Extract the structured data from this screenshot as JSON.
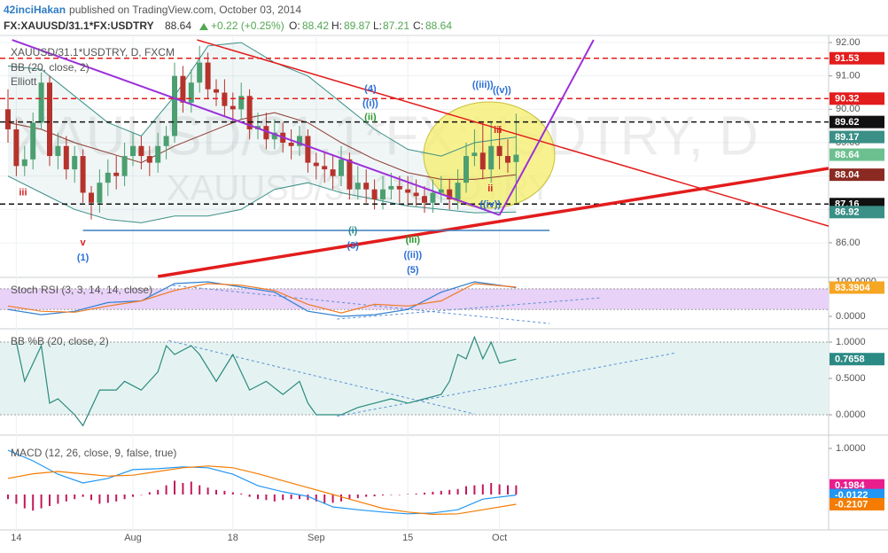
{
  "header": {
    "author": "42inciHakan",
    "published": "published on TradingView.com, October 03, 2014",
    "symbol": "FX:XAUUSD/31.1*FX:USDTRY",
    "last": 88.64,
    "change": "+0.22 (+0.25%)",
    "ohlc": [
      {
        "label": "O:",
        "value": 88.42
      },
      {
        "label": "H:",
        "value": 89.87
      },
      {
        "label": "L:",
        "value": 87.21
      },
      {
        "label": "C:",
        "value": 88.64
      }
    ]
  },
  "chart_data": [
    {
      "type": "candlestick",
      "title": "XAUUSD/31.1*USDTRY, D, FXCM",
      "legend_extra": "Elliott",
      "watermark": "XAUUSD/31.1*FX:USDTRY, D",
      "watermark_small": "XAUUSD/31.1*USDTRY",
      "categories": [
        null,
        "14",
        null,
        null,
        null,
        null,
        null,
        null,
        null,
        null,
        null,
        null,
        null,
        null,
        null,
        "Aug",
        null,
        null,
        null,
        null,
        null,
        null,
        null,
        null,
        null,
        null,
        null,
        "18",
        null,
        null,
        null,
        null,
        null,
        null,
        null,
        null,
        null,
        "Sep",
        null,
        null,
        null,
        null,
        null,
        null,
        null,
        null,
        null,
        null,
        "15",
        null,
        null,
        null,
        null,
        null,
        null,
        null,
        null,
        null,
        null,
        "Oct",
        null,
        null
      ],
      "open": [
        90.0,
        89.4,
        88.3,
        88.5,
        89.6,
        90.8,
        88.6,
        88.9,
        88.2,
        88.6,
        87.5,
        87.2,
        87.8,
        88.1,
        88.0,
        88.6,
        88.9,
        88.6,
        88.4,
        88.9,
        89.2,
        91.0,
        90.2,
        90.8,
        91.4,
        90.6,
        90.5,
        90.1,
        90.0,
        90.4,
        89.4,
        89.5,
        89.1,
        89.3,
        89.0,
        88.9,
        89.2,
        88.4,
        88.3,
        88.2,
        88.0,
        88.5,
        87.6,
        87.8,
        87.6,
        87.3,
        87.6,
        87.7,
        87.6,
        87.5,
        87.4,
        87.2,
        87.5,
        87.6,
        87.3,
        87.8,
        88.6,
        88.7,
        88.2,
        88.9,
        88.6,
        88.42
      ],
      "high": [
        90.6,
        89.7,
        88.9,
        89.9,
        91.1,
        91.0,
        89.3,
        89.2,
        88.9,
        88.8,
        87.7,
        88.2,
        88.5,
        88.6,
        89.0,
        89.3,
        89.2,
        88.9,
        89.3,
        89.5,
        91.4,
        91.3,
        91.2,
        91.9,
        91.7,
        90.9,
        90.9,
        90.5,
        90.8,
        90.6,
        89.9,
        89.9,
        89.7,
        89.6,
        89.4,
        89.5,
        89.4,
        88.7,
        88.7,
        88.6,
        88.9,
        88.7,
        88.3,
        88.2,
        87.9,
        88.0,
        88.1,
        88.0,
        88.0,
        87.9,
        87.7,
        87.9,
        88.0,
        87.9,
        88.2,
        89.0,
        89.4,
        89.6,
        89.6,
        89.5,
        89.1,
        89.87
      ],
      "low": [
        89.0,
        88.0,
        88.0,
        88.2,
        89.4,
        88.3,
        88.2,
        87.9,
        87.8,
        87.2,
        86.7,
        86.9,
        87.4,
        87.6,
        87.7,
        88.3,
        88.2,
        88.0,
        88.1,
        88.5,
        89.0,
        89.9,
        89.9,
        90.5,
        90.3,
        90.1,
        89.8,
        89.6,
        89.7,
        89.1,
        89.1,
        88.8,
        88.8,
        88.7,
        88.5,
        88.6,
        88.1,
        87.9,
        87.8,
        87.6,
        87.7,
        87.3,
        87.3,
        87.2,
        87.0,
        87.0,
        87.3,
        87.2,
        87.1,
        87.1,
        86.9,
        86.9,
        87.2,
        87.0,
        87.0,
        87.5,
        88.3,
        87.9,
        87.8,
        88.2,
        88.1,
        87.21
      ],
      "close": [
        89.4,
        88.3,
        88.5,
        89.6,
        90.8,
        88.6,
        88.9,
        88.2,
        88.6,
        87.5,
        87.2,
        87.8,
        88.1,
        88.0,
        88.6,
        88.9,
        88.6,
        88.4,
        88.9,
        89.2,
        91.0,
        90.2,
        90.8,
        91.4,
        90.6,
        90.5,
        90.1,
        90.0,
        90.4,
        89.4,
        89.5,
        89.1,
        89.3,
        89.0,
        88.9,
        89.2,
        88.4,
        88.3,
        88.2,
        88.0,
        88.5,
        87.6,
        87.8,
        87.6,
        87.3,
        87.6,
        87.7,
        87.6,
        87.5,
        87.4,
        87.2,
        87.5,
        87.6,
        87.3,
        87.8,
        88.6,
        88.7,
        88.2,
        88.9,
        88.6,
        88.4,
        88.64
      ],
      "up_color": "#4c9f70",
      "down_color": "#b5332c",
      "ylim": [
        84.99,
        92.16
      ],
      "yticks": [
        {
          "value": 86,
          "label": "86.00"
        },
        {
          "value": 87,
          "label": "87.00"
        },
        {
          "value": 88,
          "label": "88.00"
        },
        {
          "value": 89,
          "label": "89.00"
        },
        {
          "value": 90,
          "label": "90.00"
        },
        {
          "value": 91,
          "label": "91.00"
        },
        {
          "value": 92,
          "label": "92.00"
        }
      ],
      "grid": true,
      "bands": {
        "name": "BB (20, close, 2)",
        "color": "#3a8f86",
        "middle_color": "#8b3a2f",
        "x": [
          0,
          4,
          8,
          12,
          16,
          20,
          24,
          28,
          32,
          36,
          40,
          44,
          48,
          52,
          56,
          61
        ],
        "upper": [
          91.3,
          91.2,
          90.4,
          89.6,
          89.2,
          90.4,
          91.9,
          92.0,
          91.4,
          91.0,
          90.2,
          89.4,
          88.8,
          88.6,
          89.0,
          89.17
        ],
        "middle": [
          89.6,
          89.4,
          89.0,
          88.7,
          88.4,
          88.9,
          89.3,
          89.7,
          89.9,
          89.6,
          89.0,
          88.5,
          88.1,
          87.9,
          87.9,
          88.04
        ],
        "lower": [
          88.0,
          87.5,
          87.0,
          86.7,
          86.6,
          86.8,
          86.8,
          87.0,
          87.6,
          87.8,
          87.5,
          87.3,
          87.1,
          87.0,
          86.9,
          86.92
        ]
      },
      "trend_lines": [
        {
          "color": "#e31c1c",
          "width": 1.5,
          "x": [
            22.7,
            98.5
          ],
          "y": [
            92.08,
            86.5
          ]
        },
        {
          "color": "#e31c1c",
          "width": 3.5,
          "x": [
            18,
            98.5
          ],
          "y": [
            84.99,
            88.23
          ]
        },
        {
          "color": "#9b30d9",
          "width": 2,
          "x": [
            0.5,
            59
          ],
          "y": [
            92.08,
            86.83
          ]
        },
        {
          "color": "#9b30d9",
          "width": 2,
          "x": [
            59,
            70.3
          ],
          "y": [
            86.83,
            92.08
          ]
        },
        {
          "color": "#3d7fc1",
          "width": 1.5,
          "x": [
            9,
            65
          ],
          "y": [
            86.37,
            86.37
          ]
        }
      ],
      "annotations": [
        {
          "text": "iii",
          "x": 1.8,
          "y": 87.5,
          "color": "#d42020"
        },
        {
          "text": "v",
          "x": 9,
          "y": 86.0,
          "color": "#d42020"
        },
        {
          "text": "(1)",
          "x": 9,
          "y": 85.55,
          "color": "#2a6fd6"
        },
        {
          "text": "(4)",
          "x": 43.5,
          "y": 90.6,
          "color": "#2a6fd6"
        },
        {
          "text": "((i))",
          "x": 43.5,
          "y": 90.17,
          "color": "#2a6fd6"
        },
        {
          "text": "(ii)",
          "x": 43.5,
          "y": 89.75,
          "color": "#2e9a2e"
        },
        {
          "text": "(i)",
          "x": 41.4,
          "y": 86.35,
          "color": "#2a8c8c"
        },
        {
          "text": "(3)",
          "x": 41.4,
          "y": 85.9,
          "color": "#2a6fd6"
        },
        {
          "text": "(iii)",
          "x": 48.6,
          "y": 86.08,
          "color": "#2e9a2e"
        },
        {
          "text": "((ii))",
          "x": 48.6,
          "y": 85.63,
          "color": "#2a6fd6"
        },
        {
          "text": "(5)",
          "x": 48.6,
          "y": 85.18,
          "color": "#2a6fd6"
        },
        {
          "text": "((iii))",
          "x": 57,
          "y": 90.73,
          "color": "#2a6fd6"
        },
        {
          "text": "((v))",
          "x": 59.3,
          "y": 90.57,
          "color": "#2a6fd6"
        },
        {
          "text": "iii",
          "x": 58.8,
          "y": 89.37,
          "color": "#d42020"
        },
        {
          "text": "ii",
          "x": 57.9,
          "y": 87.62,
          "color": "#d42020"
        },
        {
          "text": "((iv))",
          "x": 57.9,
          "y": 87.14,
          "color": "#2a6fd6"
        }
      ],
      "price_tags": [
        {
          "value": 91.53,
          "color": "#e31c1c",
          "line": true
        },
        {
          "value": 90.32,
          "color": "#e31c1c",
          "line": true
        },
        {
          "value": 89.62,
          "color": "#111111",
          "line": true
        },
        {
          "value": 89.17,
          "color": "#3a8f86",
          "line": false
        },
        {
          "value": 88.64,
          "color": "#6cc08f",
          "line": false
        },
        {
          "value": 88.04,
          "color": "#8b2a22",
          "line": false
        },
        {
          "value": 87.16,
          "color": "#111111",
          "line": true
        },
        {
          "value": 86.92,
          "color": "#3a8f86",
          "line": false
        }
      ]
    },
    {
      "type": "line",
      "title": "Stoch RSI (3, 3, 14, 14, close)",
      "ylim": [
        -33.3,
        110.3
      ],
      "yticks": [
        {
          "value": 100,
          "label": "100.0000"
        },
        {
          "value": 0,
          "label": "0.0000"
        }
      ],
      "band": [
        20,
        80
      ],
      "band_color": "#e8d2f7",
      "series": [
        {
          "color": "#2f80d1",
          "x": [
            0,
            4,
            8,
            12,
            16,
            20,
            24,
            28,
            32,
            36,
            40,
            44,
            48,
            52,
            56,
            61
          ],
          "values": [
            20,
            5,
            15,
            40,
            45,
            95,
            100,
            85,
            70,
            15,
            0,
            5,
            20,
            70,
            100,
            83.3904
          ]
        },
        {
          "color": "#f07a24",
          "x": [
            0,
            4,
            8,
            12,
            16,
            20,
            24,
            28,
            32,
            36,
            40,
            44,
            48,
            52,
            56,
            61
          ],
          "values": [
            30,
            15,
            12,
            30,
            45,
            75,
            95,
            90,
            75,
            35,
            10,
            35,
            30,
            45,
            95,
            85
          ]
        }
      ],
      "trend_lines": [
        {
          "color": "#5b8fd9",
          "x": [
            19.8,
            65
          ],
          "y": [
            89.7,
            -20.5
          ]
        },
        {
          "color": "#5b8fd9",
          "x": [
            39.5,
            71.2
          ],
          "y": [
            -7.7,
            53.8
          ]
        }
      ],
      "tags": [
        {
          "value": 83.3904,
          "color": "#f5a623"
        }
      ]
    },
    {
      "type": "line",
      "title": "BB %B (20, close, 2)",
      "ylim": [
        -0.268,
        1.171
      ],
      "yticks": [
        {
          "value": 1,
          "label": "1.0000"
        },
        {
          "value": 0.5,
          "label": "0.5000"
        },
        {
          "value": 0,
          "label": "0.0000"
        }
      ],
      "band": [
        0,
        1
      ],
      "band_color": "#e4f3f1",
      "series": [
        {
          "color": "#2b8a7f",
          "x": [
            1,
            2,
            4,
            5,
            6,
            8,
            9,
            11,
            13,
            14,
            16,
            18,
            19,
            20,
            22,
            23,
            25,
            27,
            29,
            31,
            33,
            35,
            36,
            37,
            40,
            42,
            44,
            46,
            48,
            50,
            52,
            53,
            54,
            55,
            56,
            57,
            58,
            59,
            61
          ],
          "values": [
            1.0,
            0.46,
            0.95,
            0.16,
            0.22,
            0.0,
            -0.15,
            0.34,
            0.34,
            0.46,
            0.34,
            0.59,
            0.95,
            0.83,
            0.95,
            0.83,
            0.46,
            0.83,
            0.34,
            0.46,
            0.28,
            0.46,
            0.16,
            0.0,
            0.0,
            0.1,
            0.16,
            0.22,
            0.16,
            0.22,
            0.28,
            0.46,
            0.83,
            0.77,
            1.07,
            0.77,
            1.0,
            0.71,
            0.7658
          ]
        }
      ],
      "trend_lines": [
        {
          "color": "#5b8fd9",
          "x": [
            19.3,
            56
          ],
          "y": [
            1.02,
            0.01
          ]
        },
        {
          "color": "#5b8fd9",
          "x": [
            39.5,
            80.1
          ],
          "y": [
            -0.02,
            0.85
          ]
        }
      ],
      "tags": [
        {
          "value": 0.7658,
          "color": "#2b8a84"
        }
      ]
    },
    {
      "type": "bar",
      "title": "MACD (12, 26, close, 9, false, true)",
      "ylim": [
        -0.769,
        1.269
      ],
      "yticks": [
        {
          "value": 1,
          "label": "1.0000"
        }
      ],
      "values": [
        -0.1,
        -0.2,
        -0.3,
        -0.35,
        -0.3,
        -0.25,
        -0.2,
        -0.15,
        -0.1,
        -0.05,
        -0.12,
        -0.2,
        -0.18,
        -0.15,
        -0.1,
        -0.05,
        0.0,
        0.05,
        0.1,
        0.2,
        0.3,
        0.25,
        0.28,
        0.2,
        0.15,
        0.1,
        0.08,
        0.05,
        0.02,
        -0.05,
        -0.1,
        -0.12,
        -0.15,
        -0.12,
        -0.1,
        -0.1,
        -0.12,
        -0.15,
        -0.2,
        -0.18,
        -0.15,
        -0.1,
        -0.08,
        -0.05,
        -0.04,
        -0.02,
        -0.01,
        0.0,
        0.01,
        0.02,
        0.04,
        0.06,
        0.08,
        0.1,
        0.12,
        0.18,
        0.2,
        0.22,
        0.25,
        0.22,
        0.2,
        0.1984
      ],
      "color": "#c2185b",
      "series": [
        {
          "color": "#2196f3",
          "x": [
            0,
            3,
            6,
            9,
            12,
            15,
            18,
            21,
            24,
            27,
            30,
            33,
            36,
            39,
            42,
            45,
            48,
            51,
            54,
            57,
            61
          ],
          "values": [
            0.96,
            0.73,
            0.44,
            0.25,
            0.35,
            0.54,
            0.56,
            0.6,
            0.58,
            0.44,
            0.19,
            0.06,
            -0.04,
            -0.27,
            -0.33,
            -0.38,
            -0.42,
            -0.4,
            -0.33,
            -0.1,
            -0.0122
          ]
        },
        {
          "color": "#f57c00",
          "x": [
            0,
            3,
            6,
            9,
            12,
            15,
            18,
            21,
            24,
            27,
            30,
            33,
            36,
            39,
            42,
            45,
            48,
            51,
            54,
            57,
            61
          ],
          "values": [
            0.35,
            0.45,
            0.5,
            0.45,
            0.4,
            0.42,
            0.5,
            0.58,
            0.62,
            0.58,
            0.45,
            0.3,
            0.15,
            0.0,
            -0.15,
            -0.3,
            -0.38,
            -0.43,
            -0.42,
            -0.33,
            -0.2107
          ]
        }
      ],
      "tags": [
        {
          "value": 0.1984,
          "color": "#e91e8c"
        },
        {
          "value": -0.0122,
          "color": "#2196f3"
        },
        {
          "value": -0.2107,
          "color": "#f57c00"
        }
      ]
    }
  ]
}
